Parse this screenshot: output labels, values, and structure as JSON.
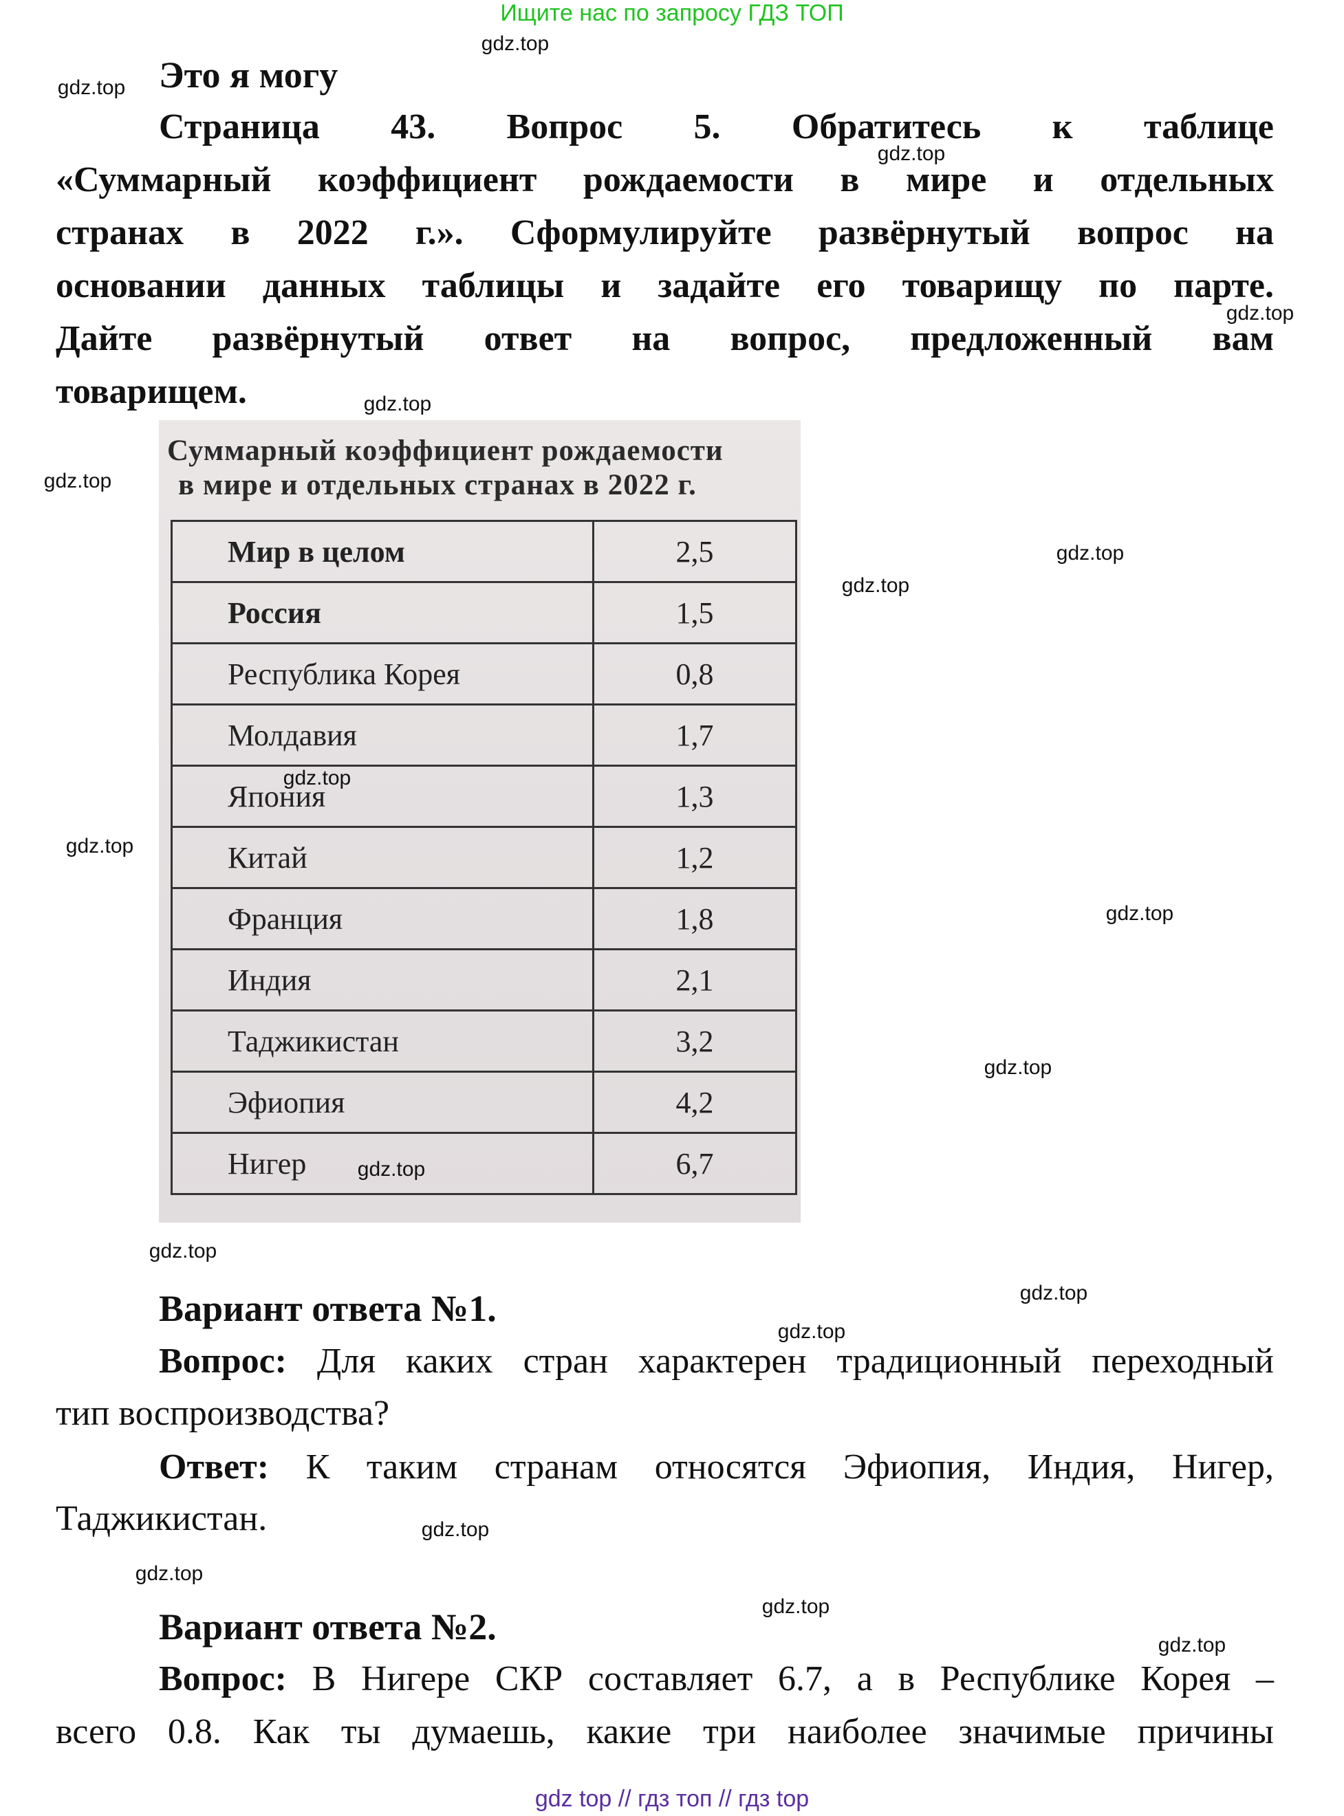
{
  "banner": "Ищите нас по запросу ГДЗ ТОП",
  "watermark": "gdz.top",
  "section_title": "Это я могу",
  "task_lines": [
    "Страница 43. Вопрос 5.   Обратитесь к таблице",
    "«Суммарный коэффициент рождаемости в мире и отдельных",
    "странах в 2022 г.». Сформулируйте развёрнутый вопрос на",
    "основании данных таблицы и задайте его товарищу по парте.",
    "Дайте развёрнутый ответ на вопрос, предложенный вам",
    "товарищем."
  ],
  "table": {
    "title_lines": [
      "Суммарный коэффициент рождаемости",
      "в мире и отдельных странах в 2022 г."
    ],
    "rows": [
      {
        "country": "Мир в целом",
        "value": "2,5"
      },
      {
        "country": "Россия",
        "value": "1,5"
      },
      {
        "country": "Республика Корея",
        "value": "0,8"
      },
      {
        "country": "Молдавия",
        "value": "1,7"
      },
      {
        "country": "Япония",
        "value": "1,3"
      },
      {
        "country": "Китай",
        "value": "1,2"
      },
      {
        "country": "Франция",
        "value": "1,8"
      },
      {
        "country": "Индия",
        "value": "2,1"
      },
      {
        "country": "Таджикистан",
        "value": "3,2"
      },
      {
        "country": "Эфиопия",
        "value": "4,2"
      },
      {
        "country": "Нигер",
        "value": "6,7"
      }
    ]
  },
  "variant1": {
    "heading": "Вариант ответа №1.",
    "question_label": "Вопрос:",
    "question_line1": "Для каких стран характерен традиционный переходный",
    "question_line2": "тип воспроизводства?",
    "answer_label": "Ответ:",
    "answer_line1": "К таким странам относятся Эфиопия, Индия, Нигер,",
    "answer_line2": "Таджикистан."
  },
  "variant2": {
    "heading": "Вариант ответа №2.",
    "question_label": "Вопрос:",
    "question_line1": "В Нигере СКР составляет 6.7, а в Республике Корея –",
    "question_line2": "всего 0.8. Как ты думаешь, какие три наиболее значимые причины"
  },
  "footer": "gdz top  //  гдз топ  //  гдз top"
}
